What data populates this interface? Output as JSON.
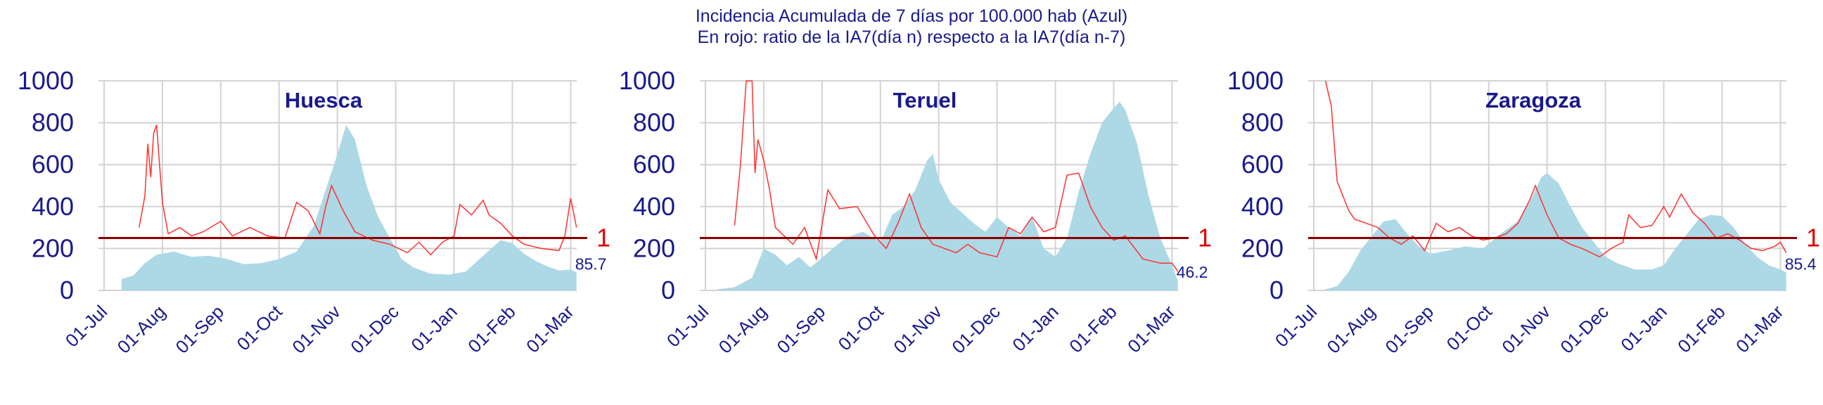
{
  "title": "Incidencia Acumulada de 7 días por 100.000 hab (Azul)",
  "subtitle": "En rojo: ratio de la IA7(día n) respecto a la IA7(día n-7)",
  "colors": {
    "area": "#add8e6",
    "ratio_line": "#ff3030",
    "ref_line": "#8b0000",
    "text": "#1a1a8c",
    "ref_label": "#e00000",
    "grid": "#d3d3d3"
  },
  "chart_data": [
    {
      "type": "area",
      "title": "Huesca",
      "y_ticks": [
        "0",
        "200",
        "400",
        "600",
        "800",
        "1000"
      ],
      "ylim": [
        0,
        1000
      ],
      "x_ticks": [
        "01-Jul",
        "01-Aug",
        "01-Sep",
        "01-Oct",
        "01-Nov",
        "01-Dec",
        "01-Jan",
        "01-Feb",
        "01-Mar"
      ],
      "x_months": [
        0,
        1,
        2,
        3,
        4,
        5,
        6,
        7,
        8
      ],
      "grid": true,
      "reference_line": {
        "value": 250,
        "label": "1"
      },
      "last_value_label": "85.7",
      "series": [
        {
          "kind": "area",
          "points": [
            [
              0.3,
              55
            ],
            [
              0.5,
              70
            ],
            [
              0.7,
              130
            ],
            [
              0.9,
              170
            ],
            [
              1.2,
              185
            ],
            [
              1.5,
              160
            ],
            [
              1.8,
              165
            ],
            [
              2.1,
              150
            ],
            [
              2.4,
              125
            ],
            [
              2.7,
              130
            ],
            [
              3.0,
              150
            ],
            [
              3.3,
              185
            ],
            [
              3.6,
              310
            ],
            [
              3.8,
              480
            ],
            [
              4.0,
              650
            ],
            [
              4.15,
              790
            ],
            [
              4.3,
              720
            ],
            [
              4.5,
              500
            ],
            [
              4.7,
              350
            ],
            [
              4.9,
              250
            ],
            [
              5.1,
              150
            ],
            [
              5.3,
              110
            ],
            [
              5.6,
              80
            ],
            [
              5.9,
              75
            ],
            [
              6.2,
              90
            ],
            [
              6.4,
              140
            ],
            [
              6.6,
              190
            ],
            [
              6.8,
              240
            ],
            [
              7.0,
              225
            ],
            [
              7.2,
              175
            ],
            [
              7.4,
              140
            ],
            [
              7.6,
              115
            ],
            [
              7.8,
              95
            ],
            [
              8.0,
              100
            ],
            [
              8.1,
              85.7
            ]
          ]
        },
        {
          "kind": "line",
          "points": [
            [
              0.6,
              300
            ],
            [
              0.7,
              450
            ],
            [
              0.75,
              700
            ],
            [
              0.8,
              540
            ],
            [
              0.85,
              750
            ],
            [
              0.9,
              790
            ],
            [
              1.0,
              420
            ],
            [
              1.1,
              270
            ],
            [
              1.3,
              300
            ],
            [
              1.5,
              260
            ],
            [
              1.7,
              280
            ],
            [
              2.0,
              330
            ],
            [
              2.2,
              260
            ],
            [
              2.5,
              300
            ],
            [
              2.8,
              260
            ],
            [
              3.1,
              250
            ],
            [
              3.3,
              420
            ],
            [
              3.5,
              380
            ],
            [
              3.7,
              270
            ],
            [
              3.8,
              400
            ],
            [
              3.9,
              500
            ],
            [
              4.1,
              380
            ],
            [
              4.3,
              280
            ],
            [
              4.6,
              240
            ],
            [
              4.9,
              220
            ],
            [
              5.2,
              180
            ],
            [
              5.4,
              230
            ],
            [
              5.6,
              170
            ],
            [
              5.8,
              230
            ],
            [
              6.0,
              260
            ],
            [
              6.1,
              410
            ],
            [
              6.3,
              360
            ],
            [
              6.5,
              430
            ],
            [
              6.6,
              360
            ],
            [
              6.8,
              320
            ],
            [
              7.0,
              260
            ],
            [
              7.2,
              220
            ],
            [
              7.5,
              200
            ],
            [
              7.8,
              190
            ],
            [
              7.9,
              260
            ],
            [
              8.0,
              440
            ],
            [
              8.1,
              300
            ]
          ]
        }
      ]
    },
    {
      "type": "area",
      "title": "Teruel",
      "y_ticks": [
        "0",
        "200",
        "400",
        "600",
        "800",
        "1000"
      ],
      "ylim": [
        0,
        1000
      ],
      "x_ticks": [
        "01-Jul",
        "01-Aug",
        "01-Sep",
        "01-Oct",
        "01-Nov",
        "01-Dec",
        "01-Jan",
        "01-Feb",
        "01-Mar"
      ],
      "x_months": [
        0,
        1,
        2,
        3,
        4,
        5,
        6,
        7,
        8
      ],
      "grid": true,
      "reference_line": {
        "value": 250,
        "label": "1"
      },
      "last_value_label": "46.2",
      "series": [
        {
          "kind": "area",
          "points": [
            [
              0.2,
              5
            ],
            [
              0.5,
              15
            ],
            [
              0.8,
              60
            ],
            [
              1.0,
              200
            ],
            [
              1.2,
              170
            ],
            [
              1.4,
              120
            ],
            [
              1.6,
              160
            ],
            [
              1.8,
              110
            ],
            [
              2.1,
              180
            ],
            [
              2.4,
              250
            ],
            [
              2.7,
              280
            ],
            [
              3.0,
              230
            ],
            [
              3.2,
              360
            ],
            [
              3.4,
              400
            ],
            [
              3.6,
              480
            ],
            [
              3.8,
              620
            ],
            [
              3.9,
              650
            ],
            [
              4.0,
              530
            ],
            [
              4.2,
              420
            ],
            [
              4.4,
              370
            ],
            [
              4.6,
              320
            ],
            [
              4.8,
              280
            ],
            [
              5.0,
              350
            ],
            [
              5.2,
              300
            ],
            [
              5.4,
              260
            ],
            [
              5.6,
              350
            ],
            [
              5.8,
              200
            ],
            [
              6.0,
              160
            ],
            [
              6.2,
              250
            ],
            [
              6.4,
              470
            ],
            [
              6.6,
              650
            ],
            [
              6.8,
              800
            ],
            [
              7.0,
              870
            ],
            [
              7.1,
              900
            ],
            [
              7.2,
              860
            ],
            [
              7.4,
              700
            ],
            [
              7.6,
              450
            ],
            [
              7.8,
              250
            ],
            [
              8.0,
              120
            ],
            [
              8.1,
              46.2
            ]
          ]
        },
        {
          "kind": "line",
          "points": [
            [
              0.5,
              310
            ],
            [
              0.6,
              600
            ],
            [
              0.7,
              1000
            ],
            [
              0.8,
              1000
            ],
            [
              0.85,
              560
            ],
            [
              0.9,
              720
            ],
            [
              1.0,
              620
            ],
            [
              1.1,
              480
            ],
            [
              1.2,
              300
            ],
            [
              1.5,
              220
            ],
            [
              1.7,
              300
            ],
            [
              1.9,
              150
            ],
            [
              2.1,
              480
            ],
            [
              2.3,
              390
            ],
            [
              2.6,
              400
            ],
            [
              2.9,
              260
            ],
            [
              3.1,
              200
            ],
            [
              3.3,
              320
            ],
            [
              3.5,
              460
            ],
            [
              3.7,
              300
            ],
            [
              3.9,
              220
            ],
            [
              4.1,
              200
            ],
            [
              4.3,
              180
            ],
            [
              4.5,
              220
            ],
            [
              4.7,
              180
            ],
            [
              5.0,
              160
            ],
            [
              5.2,
              300
            ],
            [
              5.4,
              270
            ],
            [
              5.6,
              350
            ],
            [
              5.8,
              280
            ],
            [
              6.0,
              300
            ],
            [
              6.2,
              550
            ],
            [
              6.4,
              560
            ],
            [
              6.6,
              400
            ],
            [
              6.8,
              300
            ],
            [
              7.0,
              240
            ],
            [
              7.2,
              260
            ],
            [
              7.5,
              150
            ],
            [
              7.8,
              130
            ],
            [
              8.0,
              130
            ],
            [
              8.1,
              90
            ]
          ]
        }
      ]
    },
    {
      "type": "area",
      "title": "Zaragoza",
      "y_ticks": [
        "0",
        "200",
        "400",
        "600",
        "800",
        "1000"
      ],
      "ylim": [
        0,
        1000
      ],
      "x_ticks": [
        "01-Jul",
        "01-Aug",
        "01-Sep",
        "01-Oct",
        "01-Nov",
        "01-Dec",
        "01-Jan",
        "01-Feb",
        "01-Mar"
      ],
      "x_months": [
        0,
        1,
        2,
        3,
        4,
        5,
        6,
        7,
        8
      ],
      "grid": true,
      "reference_line": {
        "value": 250,
        "label": "1"
      },
      "last_value_label": "85.4",
      "series": [
        {
          "kind": "area",
          "points": [
            [
              0.2,
              5
            ],
            [
              0.4,
              20
            ],
            [
              0.6,
              90
            ],
            [
              0.8,
              190
            ],
            [
              1.0,
              260
            ],
            [
              1.2,
              330
            ],
            [
              1.4,
              340
            ],
            [
              1.6,
              270
            ],
            [
              1.8,
              210
            ],
            [
              2.0,
              175
            ],
            [
              2.3,
              190
            ],
            [
              2.6,
              210
            ],
            [
              2.9,
              200
            ],
            [
              3.2,
              270
            ],
            [
              3.5,
              330
            ],
            [
              3.7,
              420
            ],
            [
              3.9,
              540
            ],
            [
              4.0,
              560
            ],
            [
              4.2,
              510
            ],
            [
              4.4,
              400
            ],
            [
              4.6,
              300
            ],
            [
              4.8,
              230
            ],
            [
              5.0,
              160
            ],
            [
              5.2,
              130
            ],
            [
              5.5,
              100
            ],
            [
              5.8,
              100
            ],
            [
              6.0,
              120
            ],
            [
              6.2,
              200
            ],
            [
              6.4,
              270
            ],
            [
              6.6,
              340
            ],
            [
              6.8,
              360
            ],
            [
              7.0,
              355
            ],
            [
              7.2,
              300
            ],
            [
              7.4,
              220
            ],
            [
              7.6,
              160
            ],
            [
              7.8,
              120
            ],
            [
              8.0,
              100
            ],
            [
              8.1,
              85.4
            ]
          ]
        },
        {
          "kind": "line",
          "points": [
            [
              0.2,
              1000
            ],
            [
              0.3,
              880
            ],
            [
              0.4,
              520
            ],
            [
              0.5,
              450
            ],
            [
              0.6,
              380
            ],
            [
              0.7,
              340
            ],
            [
              0.9,
              320
            ],
            [
              1.1,
              300
            ],
            [
              1.3,
              250
            ],
            [
              1.5,
              220
            ],
            [
              1.7,
              260
            ],
            [
              1.9,
              190
            ],
            [
              2.1,
              320
            ],
            [
              2.3,
              280
            ],
            [
              2.5,
              300
            ],
            [
              2.7,
              260
            ],
            [
              2.9,
              240
            ],
            [
              3.1,
              250
            ],
            [
              3.3,
              270
            ],
            [
              3.5,
              320
            ],
            [
              3.7,
              430
            ],
            [
              3.8,
              500
            ],
            [
              4.0,
              360
            ],
            [
              4.2,
              250
            ],
            [
              4.4,
              220
            ],
            [
              4.6,
              200
            ],
            [
              4.9,
              160
            ],
            [
              5.1,
              200
            ],
            [
              5.3,
              230
            ],
            [
              5.4,
              360
            ],
            [
              5.6,
              300
            ],
            [
              5.8,
              310
            ],
            [
              6.0,
              400
            ],
            [
              6.1,
              350
            ],
            [
              6.3,
              460
            ],
            [
              6.5,
              370
            ],
            [
              6.7,
              320
            ],
            [
              6.9,
              250
            ],
            [
              7.1,
              270
            ],
            [
              7.3,
              240
            ],
            [
              7.5,
              200
            ],
            [
              7.7,
              190
            ],
            [
              7.9,
              210
            ],
            [
              8.0,
              230
            ],
            [
              8.1,
              180
            ]
          ]
        }
      ]
    }
  ]
}
